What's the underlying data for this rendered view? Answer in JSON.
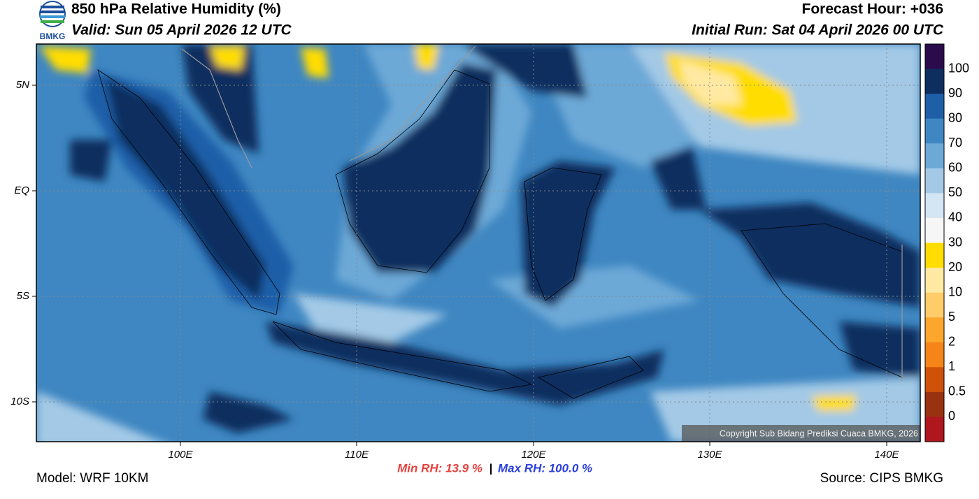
{
  "header": {
    "logo_text": "BMKG",
    "title": "850 hPa Relative Humidity (%)",
    "valid": "Valid: Sun 05 April 2026 12 UTC",
    "forecast_hour": "Forecast Hour: +036",
    "initial_run": "Initial Run: Sat 04 April 2026 00 UTC"
  },
  "map": {
    "lat_labels": [
      "5N",
      "EQ",
      "5S",
      "10S"
    ],
    "lon_labels": [
      "100E",
      "110E",
      "120E",
      "130E",
      "140E"
    ],
    "copyright": "Copyright Sub Bidang Prediksi Cuaca BMKG, 2026"
  },
  "colorbar": {
    "labels": [
      "100",
      "90",
      "80",
      "70",
      "60",
      "50",
      "40",
      "30",
      "20",
      "10",
      "5",
      "2",
      "1",
      "0.5",
      "0"
    ],
    "colors": [
      "#2b0b4c",
      "#0d2e5f",
      "#1f5fa8",
      "#3f87c2",
      "#6da9d7",
      "#a3c9e6",
      "#d4e6f3",
      "#f6f6f6",
      "#ffdd00",
      "#ffe9a3",
      "#ffcc6a",
      "#fca62c",
      "#f58518",
      "#cf5208",
      "#993210",
      "#b0161e"
    ]
  },
  "footer": {
    "model": "Model: WRF 10KM",
    "min_rh": "Min RH:  13.9 %",
    "separator": "|",
    "max_rh": "Max RH: 100.0 %",
    "source": "Source: CIPS BMKG"
  }
}
